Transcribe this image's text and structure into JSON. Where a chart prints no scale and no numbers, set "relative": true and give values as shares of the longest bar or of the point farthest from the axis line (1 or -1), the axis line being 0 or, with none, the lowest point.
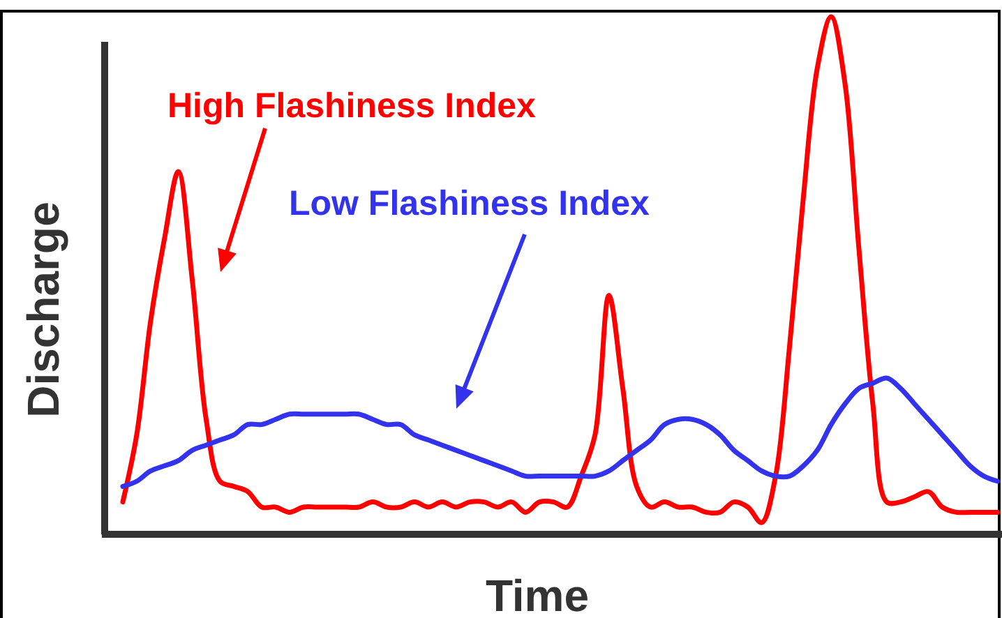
{
  "chart_data": {
    "type": "line",
    "relative": true,
    "xlabel": "Time",
    "ylabel": "Discharge",
    "line_style": "solid",
    "marker": "none",
    "legend": false,
    "categories": [
      null,
      null,
      null,
      null,
      null,
      null,
      null,
      null,
      null,
      null,
      null,
      null,
      null,
      null,
      null,
      null,
      null,
      null,
      null,
      null,
      null,
      null,
      null,
      null,
      null,
      null,
      null,
      null,
      null,
      null,
      null,
      null,
      null,
      null,
      null,
      null,
      null,
      null,
      null,
      null,
      null,
      null,
      null,
      null,
      null,
      null,
      null,
      null,
      null,
      null,
      null,
      null,
      null,
      null,
      null,
      null,
      null,
      null,
      null,
      null,
      null,
      null,
      null,
      null
    ],
    "series": [
      {
        "name": "High Flashiness Index",
        "color": "#ff0000",
        "values": [
          0.06,
          0.19,
          0.41,
          0.57,
          0.7,
          0.49,
          0.22,
          0.1,
          0.09,
          0.08,
          0.05,
          0.05,
          0.04,
          0.05,
          0.05,
          0.05,
          0.05,
          0.05,
          0.06,
          0.05,
          0.05,
          0.06,
          0.05,
          0.06,
          0.05,
          0.06,
          0.06,
          0.05,
          0.06,
          0.04,
          0.06,
          0.06,
          0.05,
          0.11,
          0.19,
          0.46,
          0.28,
          0.09,
          0.05,
          0.06,
          0.05,
          0.05,
          0.04,
          0.04,
          0.06,
          0.05,
          0.02,
          0.11,
          0.36,
          0.65,
          0.9,
          1,
          0.87,
          0.55,
          0.25,
          0.06,
          0.06,
          0.07,
          0.08,
          0.05,
          0.04,
          0.04,
          0.04,
          0.04
        ]
      },
      {
        "name": "Low Flashiness Index",
        "color": "#3333ee",
        "values": [
          0.09,
          0.1,
          0.12,
          0.13,
          0.14,
          0.16,
          0.17,
          0.18,
          0.19,
          0.21,
          0.21,
          0.22,
          0.23,
          0.23,
          0.23,
          0.23,
          0.23,
          0.23,
          0.22,
          0.21,
          0.21,
          0.19,
          0.18,
          0.17,
          0.16,
          0.15,
          0.14,
          0.13,
          0.12,
          0.11,
          0.11,
          0.11,
          0.11,
          0.11,
          0.11,
          0.12,
          0.14,
          0.16,
          0.18,
          0.21,
          0.22,
          0.22,
          0.21,
          0.19,
          0.16,
          0.14,
          0.12,
          0.11,
          0.11,
          0.13,
          0.16,
          0.21,
          0.25,
          0.28,
          0.29,
          0.3,
          0.28,
          0.25,
          0.22,
          0.19,
          0.16,
          0.13,
          0.11,
          0.1
        ]
      }
    ]
  }
}
